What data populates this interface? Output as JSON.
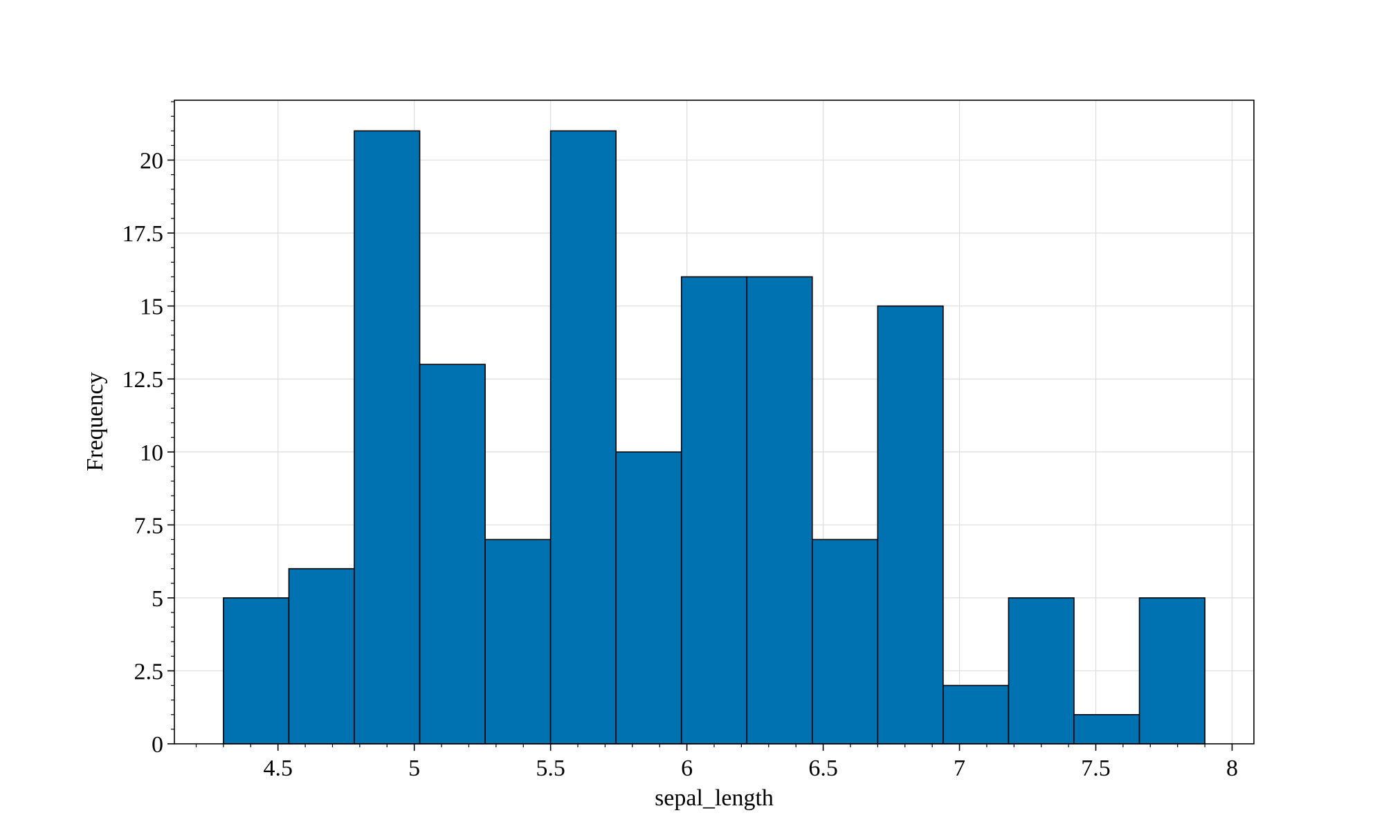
{
  "chart_data": {
    "type": "bar",
    "subtype": "histogram",
    "title": "",
    "xlabel": "sepal_length",
    "ylabel": "Frequency",
    "bins": [
      {
        "x0": 4.3,
        "x1": 4.54,
        "count": 5
      },
      {
        "x0": 4.54,
        "x1": 4.78,
        "count": 6
      },
      {
        "x0": 4.78,
        "x1": 5.02,
        "count": 21
      },
      {
        "x0": 5.02,
        "x1": 5.26,
        "count": 13
      },
      {
        "x0": 5.26,
        "x1": 5.5,
        "count": 7
      },
      {
        "x0": 5.5,
        "x1": 5.74,
        "count": 21
      },
      {
        "x0": 5.74,
        "x1": 5.98,
        "count": 10
      },
      {
        "x0": 5.98,
        "x1": 6.22,
        "count": 16
      },
      {
        "x0": 6.22,
        "x1": 6.46,
        "count": 16
      },
      {
        "x0": 6.46,
        "x1": 6.7,
        "count": 7
      },
      {
        "x0": 6.7,
        "x1": 6.94,
        "count": 15
      },
      {
        "x0": 6.94,
        "x1": 7.18,
        "count": 2
      },
      {
        "x0": 7.18,
        "x1": 7.42,
        "count": 5
      },
      {
        "x0": 7.42,
        "x1": 7.66,
        "count": 1
      },
      {
        "x0": 7.66,
        "x1": 7.9,
        "count": 5
      }
    ],
    "xlim": [
      4.12,
      8.08
    ],
    "ylim": [
      0,
      22.05
    ],
    "xticks": [
      4.5,
      5,
      5.5,
      6,
      6.5,
      7,
      7.5,
      8
    ],
    "xtick_labels": [
      "4.5",
      "5",
      "5.5",
      "6",
      "6.5",
      "7",
      "7.5",
      "8"
    ],
    "yticks": [
      0,
      2.5,
      5,
      7.5,
      10,
      12.5,
      15,
      17.5,
      20
    ],
    "ytick_labels": [
      "0",
      "2.5",
      "5",
      "7.5",
      "10",
      "12.5",
      "15",
      "17.5",
      "20"
    ],
    "grid": true,
    "colors": {
      "bar_fill": "#0072b2",
      "bar_edge": "#000000",
      "grid": "#dddddd",
      "axis": "#000000"
    }
  }
}
